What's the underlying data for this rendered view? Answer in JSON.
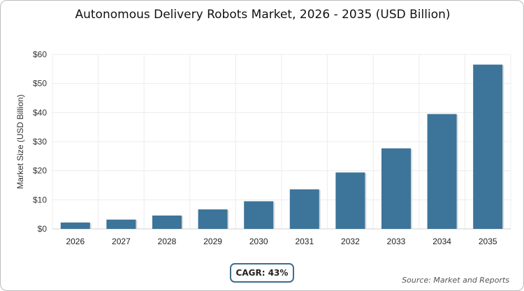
{
  "chart_data": {
    "type": "bar",
    "title": "Autonomous Delivery Robots Market, 2026 - 2035 (USD Billion)",
    "xlabel": "",
    "ylabel": "Market Size (USD Billion)",
    "categories": [
      "2026",
      "2027",
      "2028",
      "2029",
      "2030",
      "2031",
      "2032",
      "2033",
      "2034",
      "2035"
    ],
    "values": [
      2.2,
      3.2,
      4.6,
      6.7,
      9.5,
      13.6,
      19.4,
      27.7,
      39.5,
      56.5
    ],
    "ylim": [
      0,
      60
    ],
    "yticks": [
      "$0",
      "$10",
      "$20",
      "$30",
      "$40",
      "$50",
      "$60"
    ],
    "grid": true,
    "bar_color": "#3d7499"
  },
  "cagr": "CAGR: 43%",
  "source": "Source: Market and Reports"
}
